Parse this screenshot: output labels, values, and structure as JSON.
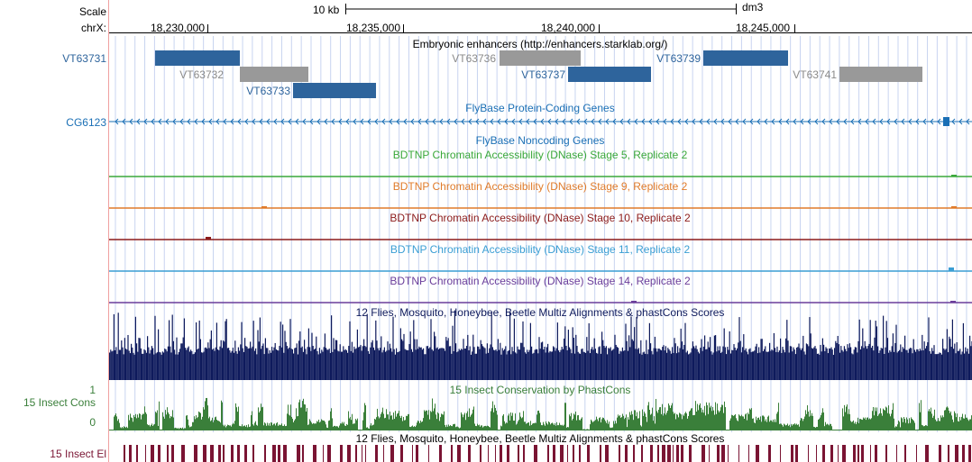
{
  "ruler": {
    "scale_label": "Scale",
    "chrom_label": "chrX:",
    "scale_bar_label": "10 kb",
    "assembly": "dm3",
    "positions": [
      "18,230,000",
      "18,235,000",
      "18,240,000",
      "18,245,000"
    ]
  },
  "enhancers": {
    "title": "Embryonic enhancers (http://enhancers.starklab.org/)",
    "items": [
      {
        "name": "VT63731",
        "color": "#2e649c"
      },
      {
        "name": "VT63732",
        "color": "#999999"
      },
      {
        "name": "VT63733",
        "color": "#2e649c"
      },
      {
        "name": "VT63736",
        "color": "#999999"
      },
      {
        "name": "VT63737",
        "color": "#2e649c"
      },
      {
        "name": "VT63739",
        "color": "#2e649c"
      },
      {
        "name": "VT63741",
        "color": "#999999"
      }
    ]
  },
  "genes": {
    "title": "FlyBase Protein-Coding Genes",
    "gene_name": "CG6123",
    "color": "#1a6fb5",
    "noncoding_title": "FlyBase Noncoding Genes"
  },
  "dnase_tracks": [
    {
      "title": "BDTNP Chromatin Accessibility (DNase) Stage 5, Replicate 2",
      "color": "#3aa83a"
    },
    {
      "title": "BDTNP Chromatin Accessibility (DNase) Stage 9, Replicate 2",
      "color": "#e07b2a"
    },
    {
      "title": "BDTNP Chromatin Accessibility (DNase) Stage 10, Replicate 2",
      "color": "#8b1a1a"
    },
    {
      "title": "BDTNP Chromatin Accessibility (DNase) Stage 11, Replicate 2",
      "color": "#3a9ed4"
    },
    {
      "title": "BDTNP Chromatin Accessibility (DNase) Stage 14, Replicate 2",
      "color": "#6a3d9a"
    }
  ],
  "multiz": {
    "title": "12 Flies, Mosquito, Honeybee, Beetle Multiz Alignments & phastCons Scores",
    "color": "#0e1a5c"
  },
  "cons": {
    "title": "15 Insect Conservation by PhastCons",
    "label": "15 Insect Cons",
    "ymax": "1",
    "ymin": "0",
    "color": "#3a7f3a"
  },
  "elements": {
    "title": "12 Flies, Mosquito, Honeybee, Beetle Multiz Alignments & phastCons Scores",
    "label": "15 Insect El",
    "color": "#7a1433"
  }
}
